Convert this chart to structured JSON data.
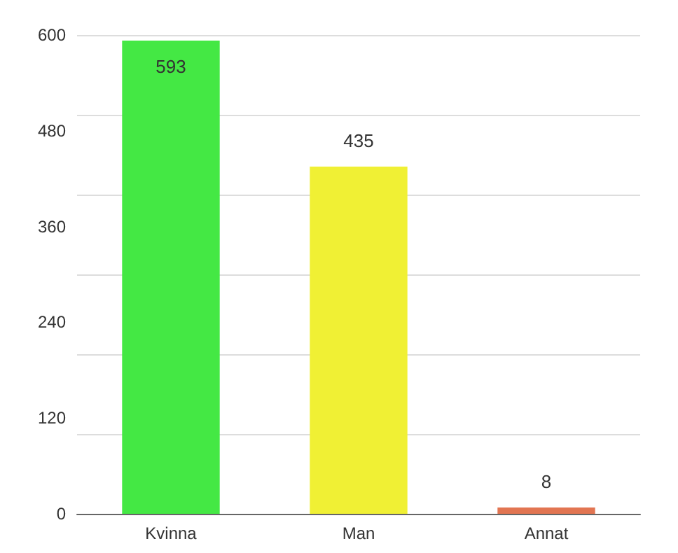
{
  "chart_data": {
    "type": "bar",
    "categories": [
      "Kvinna",
      "Man",
      "Annat"
    ],
    "values": [
      593,
      435,
      8
    ],
    "colors": [
      "#44e844",
      "#f0f034",
      "#e27552"
    ],
    "ylim": [
      0,
      600
    ],
    "yticks": [
      0,
      120,
      240,
      360,
      480,
      600
    ],
    "grid": true,
    "data_labels": true
  }
}
